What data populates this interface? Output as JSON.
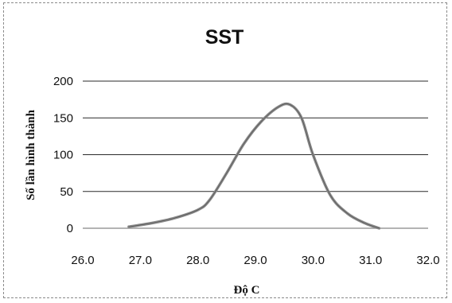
{
  "chart_data": {
    "type": "line",
    "title": "SST",
    "xlabel": "Độ C",
    "ylabel": "Số lần hình thành",
    "xlim": [
      26.0,
      32.0
    ],
    "ylim": [
      0,
      200
    ],
    "x_ticks": [
      "26.0",
      "27.0",
      "28.0",
      "29.0",
      "30.0",
      "31.0",
      "32.0"
    ],
    "y_ticks": [
      "0",
      "50",
      "100",
      "150",
      "200"
    ],
    "grid": "horizontal",
    "legend": "none",
    "series": [
      {
        "color": "#8c8c8c",
        "x": [
          26.8,
          27.2,
          27.6,
          28.0,
          28.2,
          28.5,
          28.8,
          29.1,
          29.4,
          29.6,
          29.8,
          30.0,
          30.3,
          30.6,
          30.9,
          31.15
        ],
        "y": [
          2,
          7,
          14,
          25,
          38,
          75,
          115,
          145,
          165,
          168,
          150,
          100,
          45,
          20,
          7,
          0
        ]
      }
    ]
  }
}
